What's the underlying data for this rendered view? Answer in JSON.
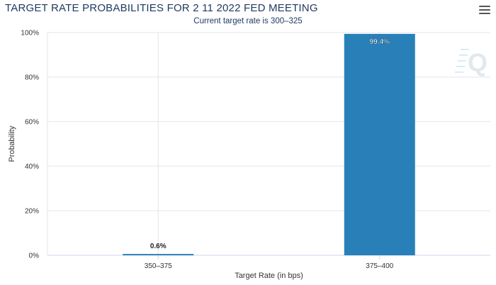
{
  "header": {
    "title": "TARGET RATE PROBABILITIES FOR 2 11 2022 FED MEETING",
    "subtitle": "Current target rate is 300–325",
    "menu_icon": "hamburger-menu-icon"
  },
  "watermark": {
    "text": "Q",
    "icon": "quikstrike-logo-icon"
  },
  "colors": {
    "bar": "#2980b9",
    "grid": "#e6e6e6",
    "axis": "#ccd6eb"
  },
  "chart_data": {
    "type": "bar",
    "title": "TARGET RATE PROBABILITIES FOR 2 11 2022 FED MEETING",
    "subtitle": "Current target rate is 300–325",
    "xlabel": "Target Rate (in bps)",
    "ylabel": "Probability",
    "categories": [
      "350–375",
      "375–400"
    ],
    "values": [
      0.6,
      99.4
    ],
    "data_labels": [
      "0.6%",
      "99.4%"
    ],
    "ylim": [
      0,
      100
    ],
    "yticks": [
      0,
      20,
      40,
      60,
      80,
      100
    ],
    "ytick_labels": [
      "0%",
      "20%",
      "40%",
      "60%",
      "80%",
      "100%"
    ],
    "grid": true,
    "legend": "none"
  }
}
